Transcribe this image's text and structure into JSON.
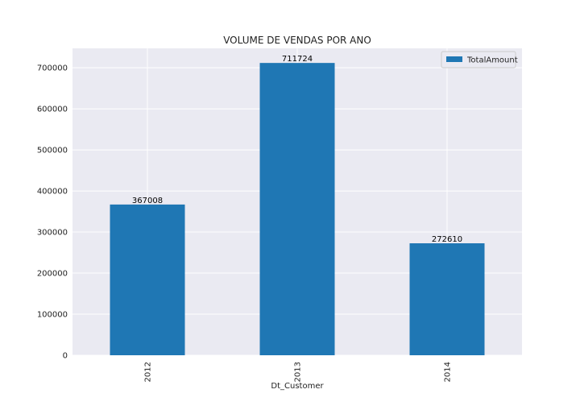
{
  "chart_data": {
    "type": "bar",
    "title": "VOLUME DE VENDAS POR ANO",
    "xlabel": "Dt_Customer",
    "ylabel": "",
    "categories": [
      "2012",
      "2013",
      "2014"
    ],
    "series": [
      {
        "name": "TotalAmount",
        "values": [
          367008,
          711724,
          272610
        ],
        "color": "#1f77b4"
      }
    ],
    "data_labels": [
      "367008",
      "711724",
      "272610"
    ],
    "ylim": [
      0,
      747310
    ],
    "yticks": [
      0,
      100000,
      200000,
      300000,
      400000,
      500000,
      600000,
      700000
    ],
    "ytick_labels": [
      "0",
      "100000",
      "200000",
      "300000",
      "400000",
      "500000",
      "600000",
      "700000"
    ],
    "grid": true,
    "legend_position": "top-right",
    "background_color": "#eaeaf2",
    "grid_color": "#ffffff"
  }
}
